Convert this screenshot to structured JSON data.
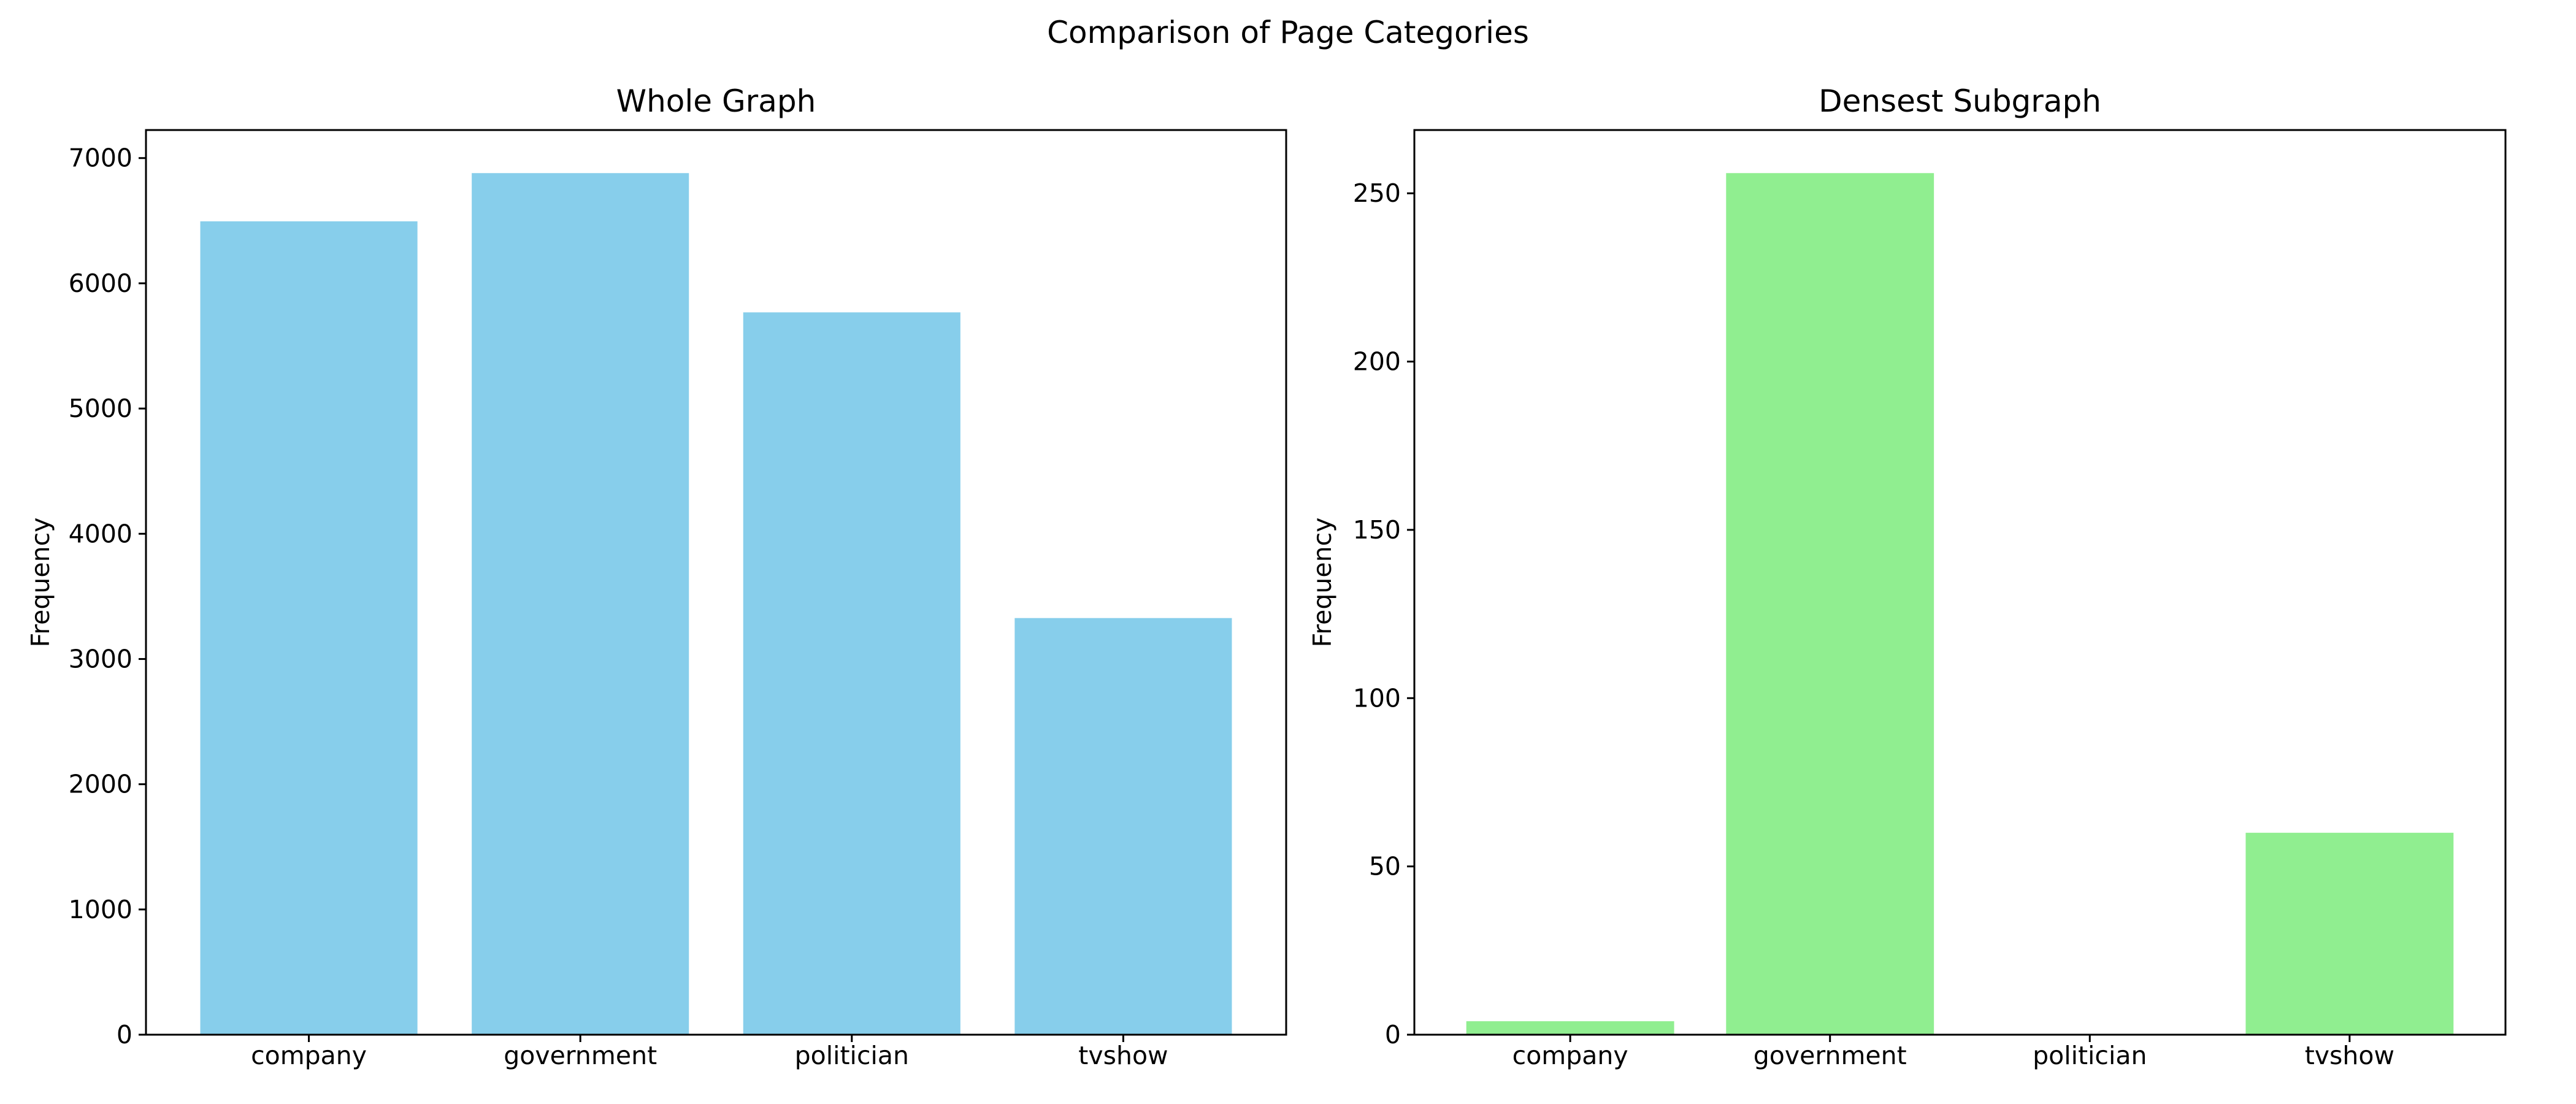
{
  "figure": {
    "suptitle": "Comparison of Page Categories"
  },
  "chart_data": [
    {
      "type": "bar",
      "title": "Whole Graph",
      "xlabel": "",
      "ylabel": "Frequency",
      "categories": [
        "company",
        "government",
        "politician",
        "tvshow"
      ],
      "values": [
        6495,
        6880,
        5768,
        3327
      ],
      "ylim": [
        0,
        7224
      ],
      "yticks": [
        0,
        1000,
        2000,
        3000,
        4000,
        5000,
        6000,
        7000
      ],
      "color": "#87CEEB",
      "grid": false
    },
    {
      "type": "bar",
      "title": "Densest Subgraph",
      "xlabel": "",
      "ylabel": "Frequency",
      "categories": [
        "company",
        "government",
        "politician",
        "tvshow"
      ],
      "values": [
        4,
        256,
        0,
        60
      ],
      "ylim": [
        0,
        268.8
      ],
      "yticks": [
        0,
        50,
        100,
        150,
        200,
        250
      ],
      "color": "#90EE90",
      "grid": false
    }
  ]
}
